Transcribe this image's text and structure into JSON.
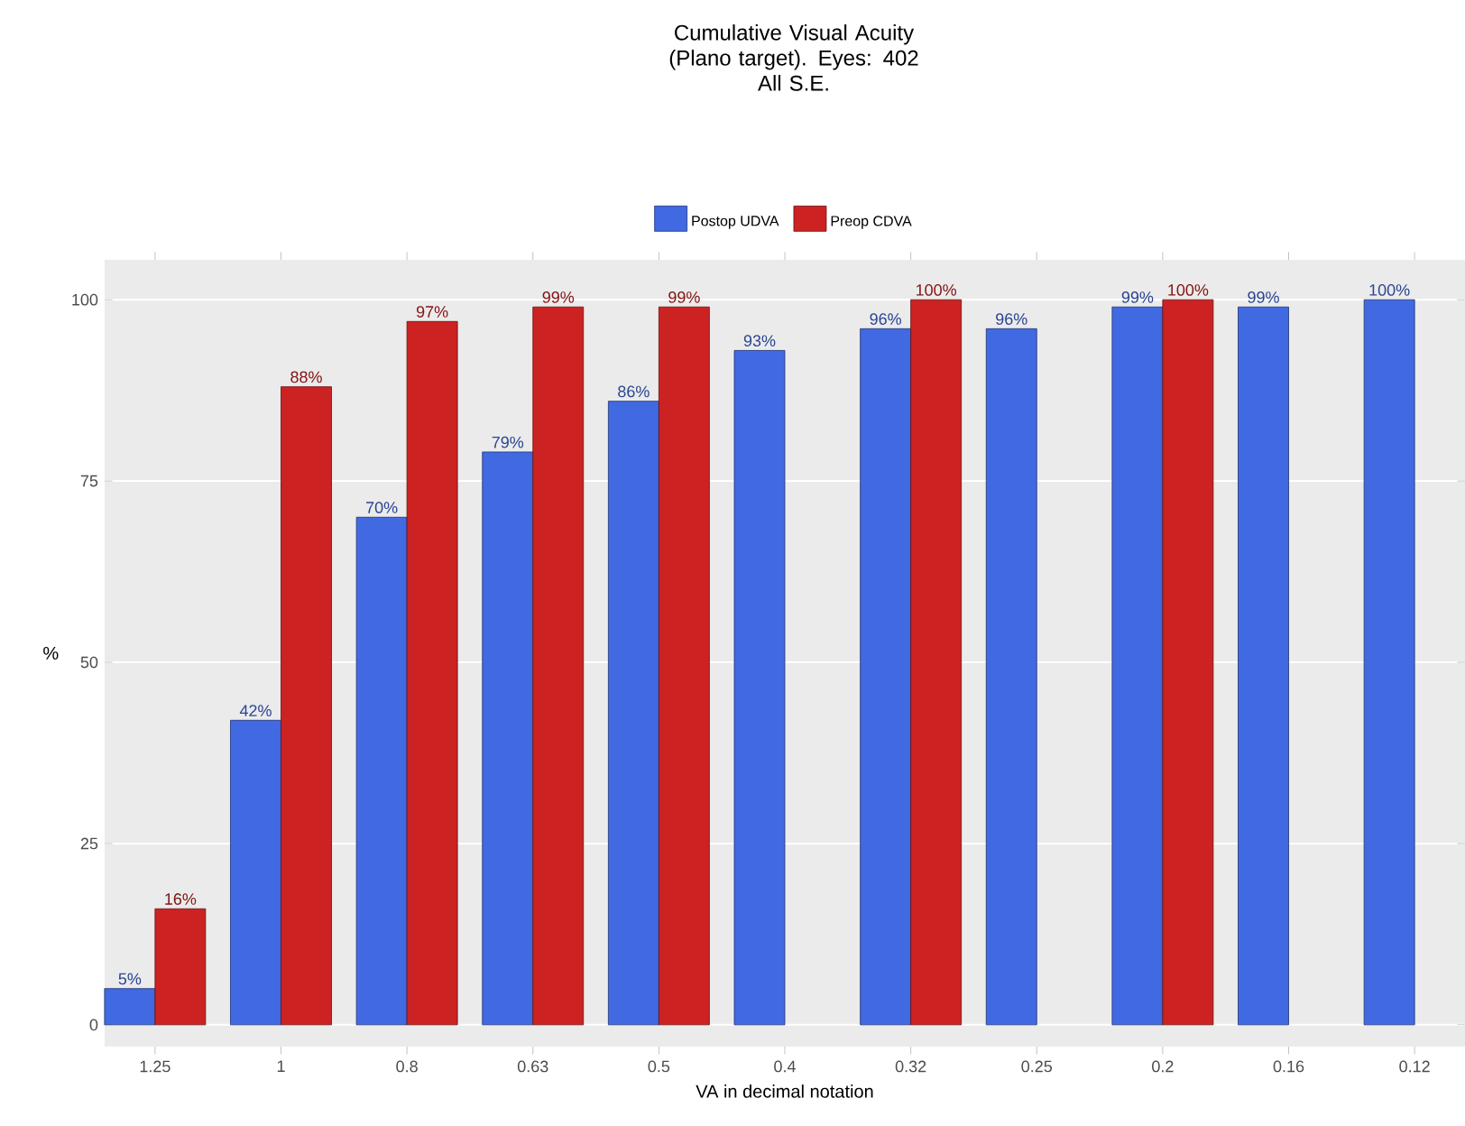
{
  "chart_data": {
    "type": "bar",
    "title": "Cumulative Visual Acuity (Plano target). Eyes: 402",
    "subtitle": "All S.E.",
    "xlabel": "VA in decimal notation",
    "ylabel": "%",
    "categories": [
      "1.25",
      "1",
      "0.8",
      "0.63",
      "0.5",
      "0.4",
      "0.32",
      "0.25",
      "0.2",
      "0.16",
      "0.12"
    ],
    "series": [
      {
        "name": "Postop UDVA",
        "color": "#4169e1",
        "values": [
          5,
          42,
          70,
          79,
          86,
          93,
          96,
          96,
          99,
          99,
          100
        ],
        "value_labels": [
          "5%",
          "42%",
          "70%",
          "79%",
          "86%",
          "93%",
          "96%",
          "96%",
          "99%",
          "99%",
          "100%"
        ]
      },
      {
        "name": "Preop CDVA",
        "color": "#cc2222",
        "values": [
          16,
          88,
          97,
          99,
          99,
          null,
          100,
          null,
          100,
          null,
          null
        ],
        "value_labels": [
          "16%",
          "88%",
          "97%",
          "99%",
          "99%",
          null,
          "100%",
          null,
          "100%",
          null,
          null
        ]
      }
    ],
    "ylim": [
      -3,
      105.5
    ],
    "yticks": [
      0,
      25,
      50,
      75,
      100
    ],
    "grid": "y",
    "legend": "top"
  }
}
